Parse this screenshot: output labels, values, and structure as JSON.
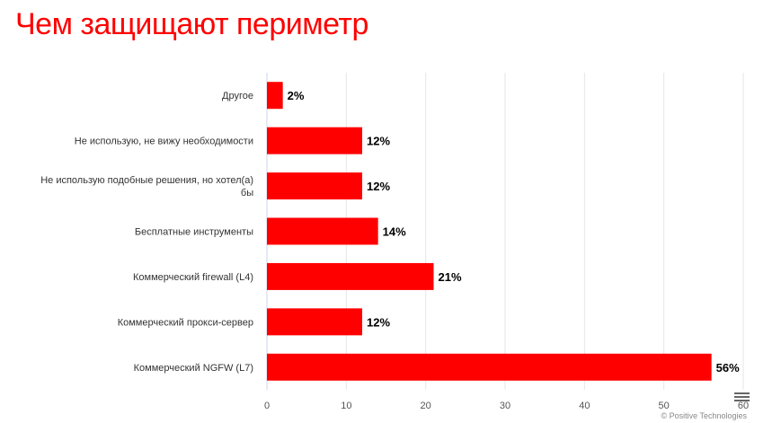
{
  "chart_data": {
    "type": "bar",
    "orientation": "horizontal",
    "title": "Чем защищают периметр",
    "categories": [
      "Другое",
      "Не использую, не вижу необходимости",
      "Не использую подобные решения, но хотел(а) бы",
      "Бесплатные инструменты",
      "Коммерческий firewall (L4)",
      "Коммерческий прокси-сервер",
      "Коммерческий NGFW (L7)"
    ],
    "values": [
      2,
      12,
      12,
      14,
      21,
      12,
      56
    ],
    "data_labels": [
      "2%",
      "12%",
      "12%",
      "14%",
      "21%",
      "12%",
      "56%"
    ],
    "xlim": [
      0,
      60
    ],
    "ticks": [
      "0",
      "10",
      "20",
      "30",
      "40",
      "50",
      "60"
    ],
    "grid": true,
    "bar_color": "#ff0000",
    "title_color": "#ff0000"
  },
  "credits": "© Positive Technologies",
  "menu_icon": "hamburger-menu-icon"
}
